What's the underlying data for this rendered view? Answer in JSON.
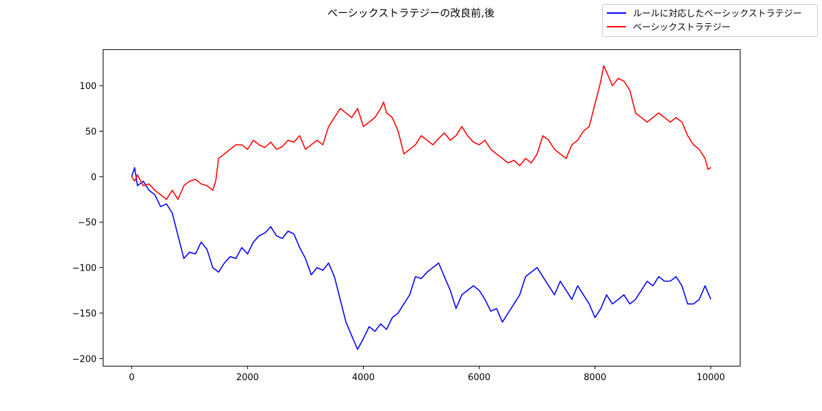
{
  "chart_data": {
    "type": "line",
    "title": "ベーシックストラテジーの改良前,後",
    "xlabel": "",
    "ylabel": "",
    "xlim": [
      -500,
      10500
    ],
    "ylim": [
      -208,
      140
    ],
    "x_ticks": [
      0,
      2000,
      4000,
      6000,
      8000,
      10000
    ],
    "x_tick_labels": [
      "0",
      "2000",
      "4000",
      "6000",
      "8000",
      "10000"
    ],
    "y_ticks": [
      100,
      50,
      0,
      -50,
      -100,
      -150,
      -200
    ],
    "y_tick_labels": [
      "100",
      "50",
      "0",
      "−50",
      "−100",
      "−150",
      "−200"
    ],
    "grid": false,
    "legend_position": "top-right (outside axes)",
    "series": [
      {
        "name": "ルールに対応したベーシックストラテジー",
        "color": "#0000ff",
        "x": [
          0,
          50,
          100,
          200,
          300,
          400,
          500,
          600,
          700,
          800,
          900,
          1000,
          1100,
          1200,
          1300,
          1400,
          1500,
          1600,
          1700,
          1800,
          1900,
          2000,
          2100,
          2200,
          2300,
          2400,
          2500,
          2600,
          2700,
          2800,
          2900,
          3000,
          3100,
          3200,
          3300,
          3400,
          3500,
          3600,
          3700,
          3800,
          3900,
          4000,
          4100,
          4200,
          4300,
          4400,
          4500,
          4600,
          4700,
          4800,
          4900,
          5000,
          5100,
          5200,
          5300,
          5400,
          5500,
          5600,
          5700,
          5800,
          5900,
          6000,
          6100,
          6200,
          6300,
          6400,
          6500,
          6600,
          6700,
          6800,
          6900,
          7000,
          7100,
          7200,
          7300,
          7400,
          7500,
          7600,
          7700,
          7800,
          7900,
          8000,
          8100,
          8200,
          8300,
          8400,
          8500,
          8600,
          8700,
          8800,
          8900,
          9000,
          9100,
          9200,
          9300,
          9400,
          9500,
          9600,
          9700,
          9800,
          9900,
          10000
        ],
        "y": [
          0,
          10,
          -10,
          -5,
          -15,
          -20,
          -33,
          -30,
          -40,
          -65,
          -90,
          -83,
          -85,
          -72,
          -80,
          -100,
          -105,
          -95,
          -88,
          -90,
          -78,
          -85,
          -72,
          -65,
          -62,
          -55,
          -65,
          -68,
          -60,
          -63,
          -78,
          -90,
          -108,
          -100,
          -103,
          -95,
          -110,
          -135,
          -160,
          -175,
          -190,
          -178,
          -165,
          -170,
          -162,
          -168,
          -155,
          -150,
          -140,
          -130,
          -110,
          -112,
          -105,
          -100,
          -95,
          -110,
          -125,
          -145,
          -130,
          -125,
          -120,
          -125,
          -135,
          -148,
          -145,
          -160,
          -150,
          -140,
          -130,
          -110,
          -105,
          -100,
          -110,
          -120,
          -130,
          -115,
          -125,
          -135,
          -120,
          -130,
          -140,
          -155,
          -145,
          -130,
          -140,
          -135,
          -130,
          -140,
          -135,
          -125,
          -115,
          -120,
          -110,
          -115,
          -115,
          -110,
          -120,
          -140,
          -140,
          -135,
          -120,
          -135
        ]
      },
      {
        "name": "ベーシックストラテジー",
        "color": "#ff0000",
        "x": [
          0,
          50,
          100,
          200,
          300,
          400,
          500,
          600,
          700,
          800,
          900,
          1000,
          1100,
          1200,
          1300,
          1400,
          1450,
          1500,
          1600,
          1700,
          1800,
          1900,
          2000,
          2100,
          2200,
          2300,
          2400,
          2500,
          2600,
          2700,
          2800,
          2900,
          3000,
          3100,
          3200,
          3300,
          3400,
          3500,
          3600,
          3700,
          3800,
          3900,
          4000,
          4100,
          4200,
          4300,
          4350,
          4400,
          4500,
          4600,
          4700,
          4800,
          4900,
          5000,
          5100,
          5200,
          5300,
          5400,
          5500,
          5600,
          5700,
          5800,
          5900,
          6000,
          6100,
          6200,
          6300,
          6400,
          6500,
          6600,
          6700,
          6800,
          6900,
          7000,
          7100,
          7200,
          7300,
          7400,
          7500,
          7600,
          7700,
          7800,
          7900,
          8000,
          8100,
          8150,
          8200,
          8300,
          8400,
          8500,
          8600,
          8700,
          8800,
          8900,
          9000,
          9100,
          9200,
          9300,
          9400,
          9500,
          9600,
          9700,
          9800,
          9900,
          9950,
          10000
        ],
        "y": [
          0,
          -5,
          2,
          -10,
          -8,
          -15,
          -20,
          -25,
          -15,
          -25,
          -10,
          -5,
          -3,
          -8,
          -10,
          -15,
          -5,
          20,
          25,
          30,
          35,
          35,
          30,
          40,
          35,
          32,
          38,
          30,
          33,
          40,
          38,
          45,
          30,
          35,
          40,
          35,
          55,
          65,
          75,
          70,
          65,
          75,
          55,
          60,
          65,
          75,
          82,
          70,
          65,
          50,
          25,
          30,
          35,
          45,
          40,
          35,
          42,
          48,
          40,
          45,
          55,
          45,
          38,
          35,
          40,
          30,
          25,
          20,
          15,
          18,
          12,
          20,
          15,
          25,
          45,
          40,
          30,
          25,
          20,
          35,
          40,
          50,
          55,
          80,
          105,
          122,
          115,
          100,
          108,
          105,
          95,
          70,
          65,
          60,
          65,
          70,
          65,
          60,
          65,
          60,
          45,
          35,
          30,
          20,
          8,
          10
        ]
      }
    ]
  }
}
